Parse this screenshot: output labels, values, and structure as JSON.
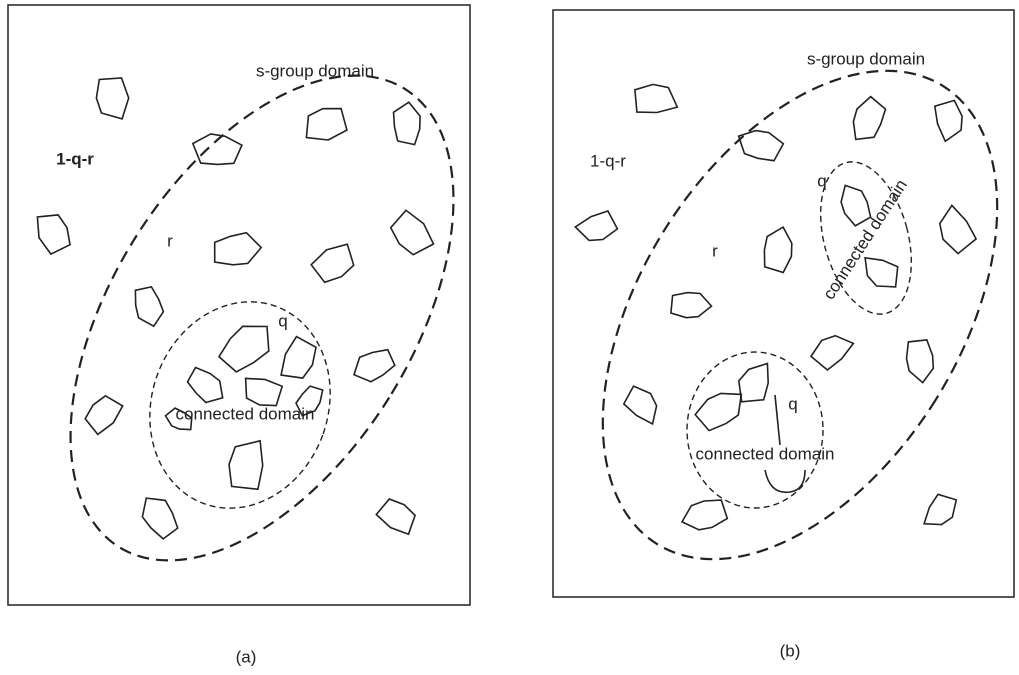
{
  "panels": [
    {
      "caption": "(a)",
      "s_group_label": "s-group domain",
      "outside_label": "1-q-r",
      "r_label": "r",
      "domains": [
        {
          "q_label": "q",
          "label": "connected domain"
        }
      ]
    },
    {
      "caption": "(b)",
      "s_group_label": "s-group domain",
      "outside_label": "1-q-r",
      "r_label": "r",
      "domains": [
        {
          "q_label": "q",
          "label": "connected domain"
        },
        {
          "q_label": "q",
          "label": "connected domain"
        }
      ]
    }
  ]
}
